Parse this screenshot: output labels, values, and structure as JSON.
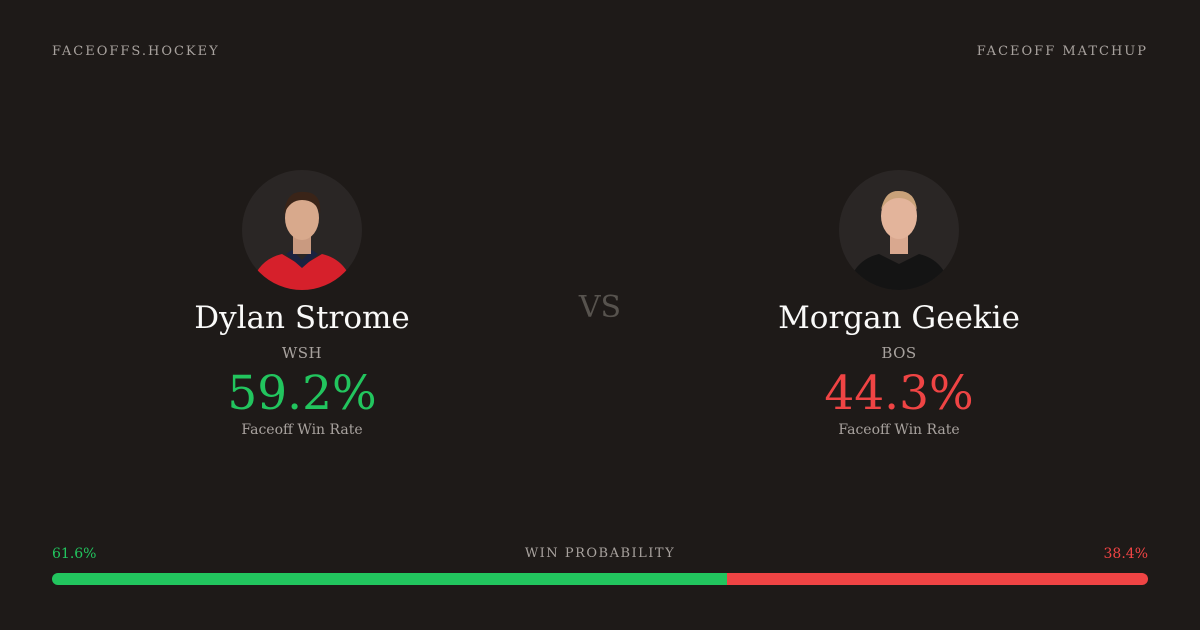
{
  "header": {
    "brand": "FACEOFFS.HOCKEY",
    "label": "FACEOFF MATCHUP"
  },
  "vs": "VS",
  "players": [
    {
      "name": "Dylan Strome",
      "team": "WSH",
      "rate": "59.2%",
      "rate_label": "Faceoff Win Rate"
    },
    {
      "name": "Morgan Geekie",
      "team": "BOS",
      "rate": "44.3%",
      "rate_label": "Faceoff Win Rate"
    }
  ],
  "win_probability": {
    "label": "WIN PROBABILITY",
    "values": [
      61.6,
      38.4
    ],
    "value_labels": [
      "61.6%",
      "38.4%"
    ],
    "colors": [
      "#22c55e",
      "#ef4444"
    ]
  }
}
